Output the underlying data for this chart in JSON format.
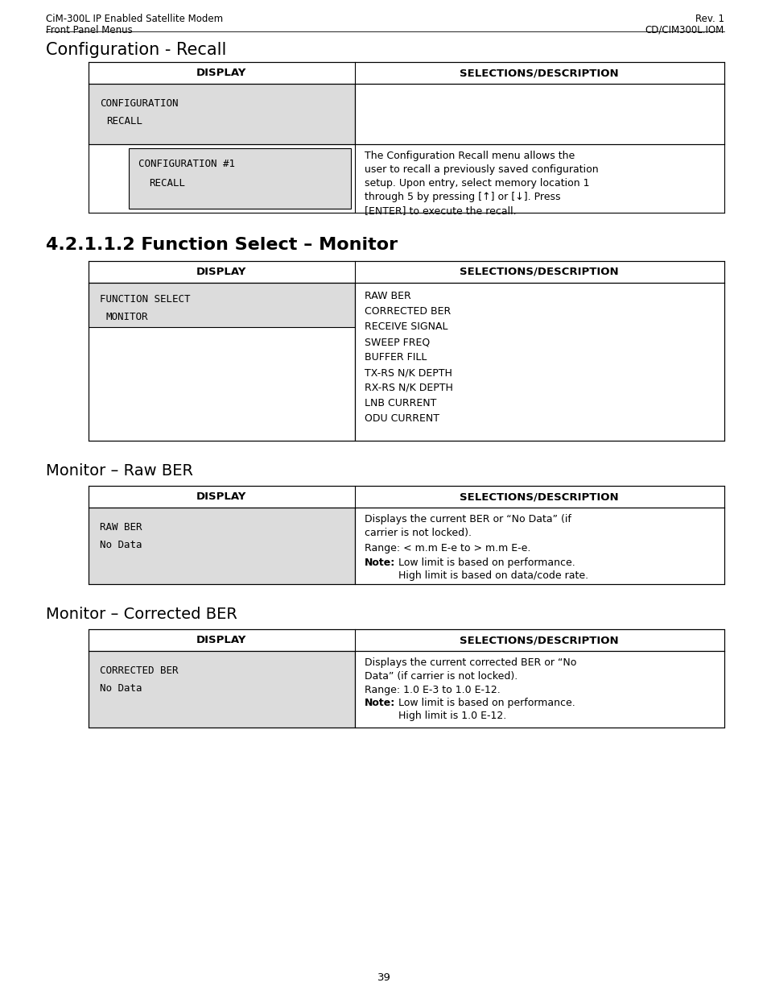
{
  "header_left_line1": "CiM-300L IP Enabled Satellite Modem",
  "header_left_line2": "Front Panel Menus",
  "header_right_line1": "Rev. 1",
  "header_right_line2": "CD/CIM300L.IOM",
  "section1_title": "Configuration - Recall",
  "section2_title": "4.2.1.1.2 Function Select – Monitor",
  "section3_title": "Monitor – Raw BER",
  "section4_title": "Monitor – Corrected BER",
  "col1_header": "DISPLAY",
  "col2_header": "SELECTIONS/DESCRIPTION",
  "table2_row1_items": [
    "RAW BER",
    "CORRECTED BER",
    "RECEIVE SIGNAL",
    "SWEEP FREQ",
    "BUFFER FILL",
    "TX-RS N/K DEPTH",
    "RX-RS N/K DEPTH",
    "LNB CURRENT",
    "ODU CURRENT"
  ],
  "page_number": "39",
  "bg_color": "#ffffff",
  "cell_bg": "#dcdcdc",
  "border_color": "#000000",
  "header_font_size": 8.5,
  "title1_font_size": 15,
  "title2_font_size": 16,
  "title3_font_size": 14,
  "table_header_font_size": 9.5,
  "mono_font_size": 9,
  "desc_font_size": 9
}
